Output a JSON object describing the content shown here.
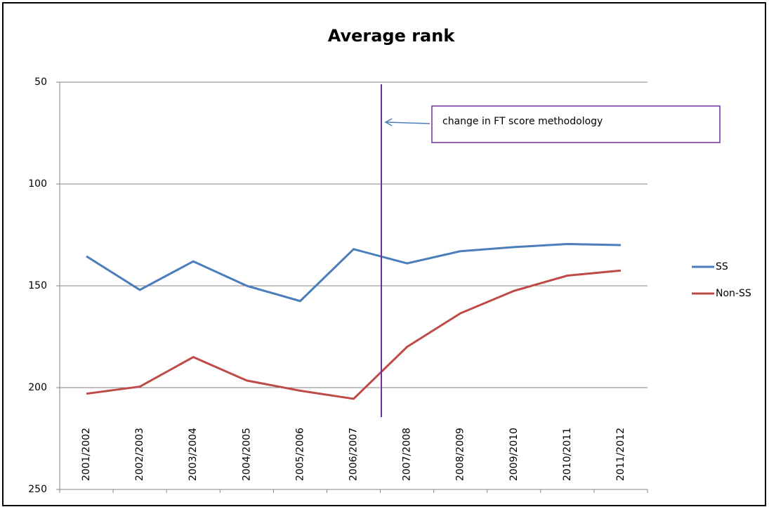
{
  "chart_data": {
    "type": "line",
    "title": "Average rank",
    "categories": [
      "2001/2002",
      "2002/2003",
      "2003/2004",
      "2004/2005",
      "2005/2006",
      "2006/2007",
      "2007/2008",
      "2008/2009",
      "2009/2010",
      "2010/2011",
      "2011/2012"
    ],
    "series": [
      {
        "name": "SS",
        "color": "#4a7ebb",
        "values": [
          135.5,
          152,
          138,
          150,
          157.5,
          132,
          139,
          133,
          131,
          129.5,
          130
        ]
      },
      {
        "name": "Non-SS",
        "color": "#be4b48",
        "values": [
          203,
          199.5,
          185,
          196.5,
          201.5,
          205.5,
          180,
          163.5,
          152.5,
          145,
          142.5
        ]
      }
    ],
    "ylim": [
      50,
      250
    ],
    "yticks": [
      50,
      100,
      150,
      200,
      250
    ],
    "y_reversed": true,
    "grid": true,
    "legend": "right",
    "annotation": "change in FT score methodology"
  }
}
